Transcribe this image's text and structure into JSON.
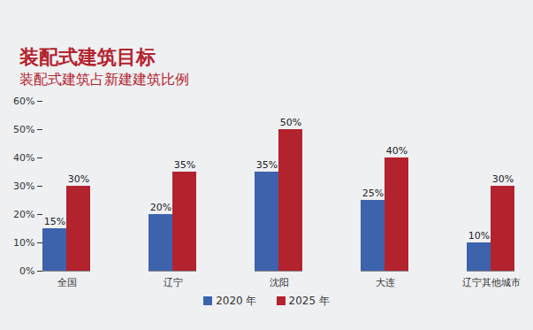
{
  "chart_data": {
    "type": "bar",
    "title": "装配式建筑目标",
    "subtitle": "装配式建筑占新建建筑比例",
    "categories": [
      "全国",
      "辽宁",
      "沈阳",
      "大连",
      "辽宁其他城市"
    ],
    "series": [
      {
        "name": "2020 年",
        "color": "#3d63ad",
        "values": [
          15,
          20,
          35,
          25,
          10
        ],
        "value_labels": [
          "15%",
          "20%",
          "35%",
          "25%",
          "10%"
        ]
      },
      {
        "name": "2025 年",
        "color": "#b3232e",
        "values": [
          30,
          35,
          50,
          40,
          30
        ],
        "value_labels": [
          "30%",
          "35%",
          "50%",
          "40%",
          "30%"
        ]
      }
    ],
    "ylim": [
      0,
      60
    ],
    "yticks": [
      {
        "value": 0,
        "label": "0%"
      },
      {
        "value": 10,
        "label": "10%"
      },
      {
        "value": 20,
        "label": "20%"
      },
      {
        "value": 30,
        "label": "30%"
      },
      {
        "value": 40,
        "label": "40%"
      },
      {
        "value": 50,
        "label": "50%"
      },
      {
        "value": 60,
        "label": "60%"
      }
    ],
    "data_labels": true,
    "grid": false,
    "legend": "bottom"
  }
}
